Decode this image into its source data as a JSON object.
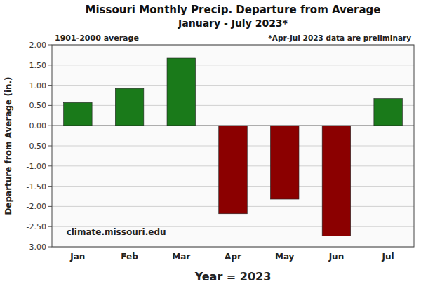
{
  "chart_data": {
    "type": "bar",
    "title": "Missouri Monthly Precip. Departure from Average",
    "subtitle": "January - July 2023*",
    "annotations": [
      "1901-2000 average",
      "*Apr-Jul 2023 data are preliminary",
      "climate.missouri.edu"
    ],
    "x_label": "Year = 2023",
    "y_label": "Departure from Average (in.)",
    "categories": [
      "Jan",
      "Feb",
      "Mar",
      "Apr",
      "May",
      "Jun",
      "Jul"
    ],
    "values": [
      0.57,
      0.92,
      1.67,
      -2.18,
      -1.82,
      -2.73,
      0.67
    ],
    "colors": [
      "#1a7a1a",
      "#1a7a1a",
      "#1a7a1a",
      "#8b0000",
      "#8b0000",
      "#8b0000",
      "#1a7a1a"
    ],
    "ylim": [
      -3.0,
      2.0
    ],
    "yticks": [
      {
        "value": -3.0,
        "label": "-3.00"
      },
      {
        "value": -2.5,
        "label": "-2.50"
      },
      {
        "value": -2.0,
        "label": "-2.00"
      },
      {
        "value": -1.5,
        "label": "-1.50"
      },
      {
        "value": -1.0,
        "label": "-1.00"
      },
      {
        "value": -0.5,
        "label": "-0.50"
      },
      {
        "value": 0.0,
        "label": "0.00"
      },
      {
        "value": 0.5,
        "label": "0.50"
      },
      {
        "value": 1.0,
        "label": "1.00"
      },
      {
        "value": 1.5,
        "label": "1.50"
      },
      {
        "value": 2.0,
        "label": "2.00"
      }
    ],
    "grid": true
  }
}
